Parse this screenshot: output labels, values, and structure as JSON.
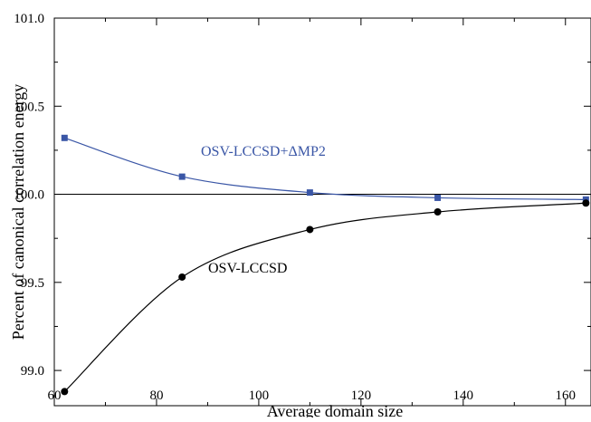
{
  "chart_data": {
    "type": "line",
    "title": "",
    "xlabel": "Average domain size",
    "ylabel": "Percent of canonical correlation energy",
    "xlim": [
      60,
      165
    ],
    "ylim": [
      98.8,
      101.0
    ],
    "x_ticks": [
      60,
      80,
      100,
      120,
      140,
      160
    ],
    "x_tick_labels": [
      "60",
      "80",
      "100",
      "120",
      "140",
      "160"
    ],
    "y_ticks": [
      99.0,
      99.5,
      100.0,
      100.5,
      101.0
    ],
    "y_tick_labels": [
      "99.0",
      "99.5",
      "100.0",
      "100.5",
      "101.0"
    ],
    "reference_line": {
      "y": 100.0,
      "color": "#000000"
    },
    "grid": false,
    "series": [
      {
        "name": "OSV-LCCSD+ΔMP2",
        "color": "#3a56a6",
        "marker": "square",
        "x": [
          62,
          85,
          110,
          135,
          164
        ],
        "y": [
          100.32,
          100.1,
          100.01,
          99.98,
          99.97
        ]
      },
      {
        "name": "OSV-LCCSD",
        "color": "#000000",
        "marker": "circle",
        "x": [
          62,
          85,
          110,
          135,
          164
        ],
        "y": [
          98.88,
          99.53,
          99.8,
          99.9,
          99.95
        ]
      }
    ]
  }
}
